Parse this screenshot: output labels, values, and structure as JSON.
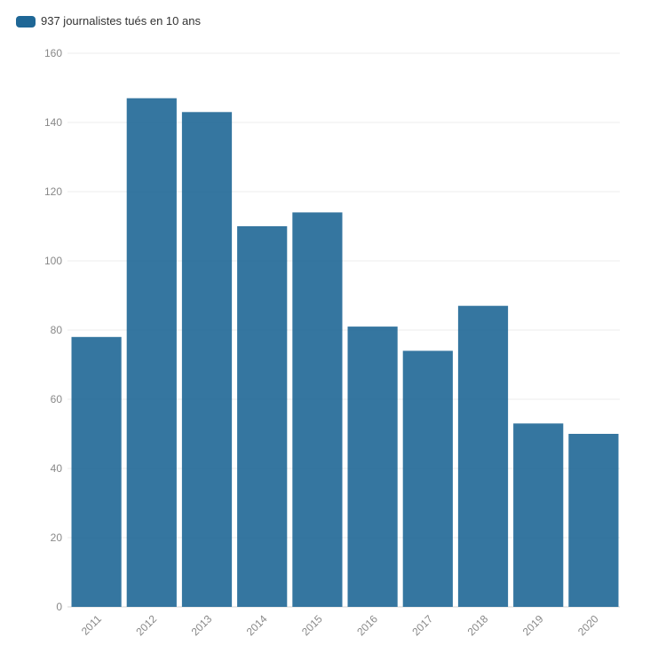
{
  "chart_data": {
    "type": "bar",
    "title": "",
    "xlabel": "",
    "ylabel": "",
    "categories": [
      "2011",
      "2012",
      "2013",
      "2014",
      "2015",
      "2016",
      "2017",
      "2018",
      "2019",
      "2020"
    ],
    "series": [
      {
        "name": "937 journalistes tués en 10 ans",
        "values": [
          78,
          147,
          143,
          110,
          114,
          81,
          74,
          87,
          53,
          50
        ],
        "color": "#1f6796"
      }
    ],
    "ylim": [
      0,
      160
    ],
    "yticks": [
      "0",
      "20",
      "40",
      "60",
      "80",
      "100",
      "120",
      "140",
      "160"
    ],
    "grid": true,
    "legend_position": "top-left"
  }
}
